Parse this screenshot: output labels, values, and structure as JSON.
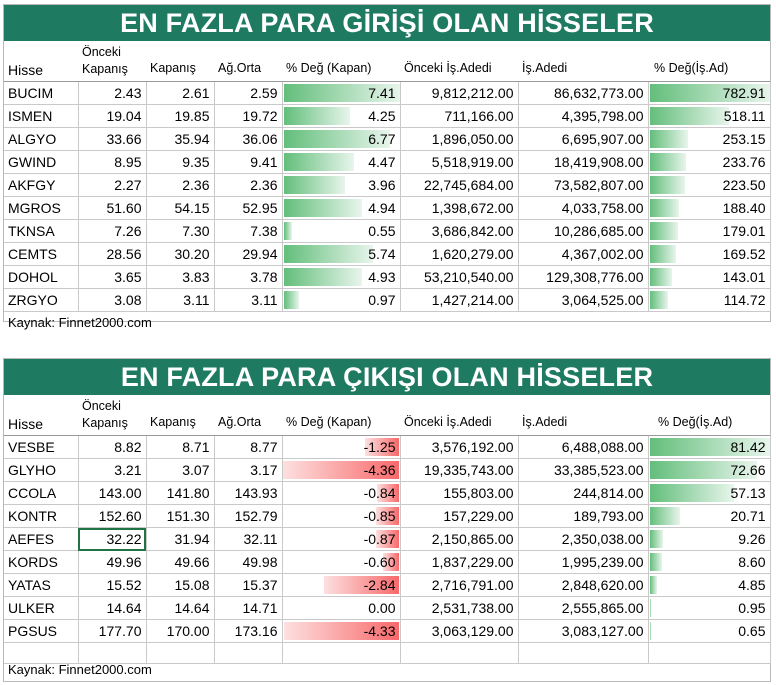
{
  "top": {
    "title": "EN FAZLA PARA GİRİŞİ OLAN HİSSELER",
    "headers": {
      "hisse": "Hisse",
      "onceki_line1": "Önceki",
      "onceki_line2": "Kapanış",
      "kapanis": "Kapanış",
      "agorta": "Ağ.Orta",
      "degkapan": "% Değ (Kapan)",
      "oncekiadet": "Önceki İş.Adedi",
      "adet": "İş.Adedi",
      "degadet": "% Değ(İş.Ad)"
    },
    "rows": [
      {
        "hisse": "BUCIM",
        "onceki": "2.43",
        "kapanis": "2.61",
        "agorta": "2.59",
        "degkapan": "7.41",
        "oncekiadet": "9,812,212.00",
        "adet": "86,632,773.00",
        "degadet": "782.91",
        "bar_kapan": 1.0,
        "bar_adet": 1.0
      },
      {
        "hisse": "ISMEN",
        "onceki": "19.04",
        "kapanis": "19.85",
        "agorta": "19.72",
        "degkapan": "4.25",
        "oncekiadet": "711,166.00",
        "adet": "4,395,798.00",
        "degadet": "518.11",
        "bar_kapan": 0.57,
        "bar_adet": 0.66
      },
      {
        "hisse": "ALGYO",
        "onceki": "33.66",
        "kapanis": "35.94",
        "agorta": "36.06",
        "degkapan": "6.77",
        "oncekiadet": "1,896,050.00",
        "adet": "6,695,907.00",
        "degadet": "253.15",
        "bar_kapan": 0.91,
        "bar_adet": 0.32
      },
      {
        "hisse": "GWIND",
        "onceki": "8.95",
        "kapanis": "9.35",
        "agorta": "9.41",
        "degkapan": "4.47",
        "oncekiadet": "5,518,919.00",
        "adet": "18,419,908.00",
        "degadet": "233.76",
        "bar_kapan": 0.6,
        "bar_adet": 0.3
      },
      {
        "hisse": "AKFGY",
        "onceki": "2.27",
        "kapanis": "2.36",
        "agorta": "2.36",
        "degkapan": "3.96",
        "oncekiadet": "22,745,684.00",
        "adet": "73,582,807.00",
        "degadet": "223.50",
        "bar_kapan": 0.53,
        "bar_adet": 0.29
      },
      {
        "hisse": "MGROS",
        "onceki": "51.60",
        "kapanis": "54.15",
        "agorta": "52.95",
        "degkapan": "4.94",
        "oncekiadet": "1,398,672.00",
        "adet": "4,033,758.00",
        "degadet": "188.40",
        "bar_kapan": 0.67,
        "bar_adet": 0.24
      },
      {
        "hisse": "TKNSA",
        "onceki": "7.26",
        "kapanis": "7.30",
        "agorta": "7.38",
        "degkapan": "0.55",
        "oncekiadet": "3,686,842.00",
        "adet": "10,286,685.00",
        "degadet": "179.01",
        "bar_kapan": 0.07,
        "bar_adet": 0.23
      },
      {
        "hisse": "CEMTS",
        "onceki": "28.56",
        "kapanis": "30.20",
        "agorta": "29.94",
        "degkapan": "5.74",
        "oncekiadet": "1,620,279.00",
        "adet": "4,367,002.00",
        "degadet": "169.52",
        "bar_kapan": 0.77,
        "bar_adet": 0.22
      },
      {
        "hisse": "DOHOL",
        "onceki": "3.65",
        "kapanis": "3.83",
        "agorta": "3.78",
        "degkapan": "4.93",
        "oncekiadet": "53,210,540.00",
        "adet": "129,308,776.00",
        "degadet": "143.01",
        "bar_kapan": 0.67,
        "bar_adet": 0.18
      },
      {
        "hisse": "ZRGYO",
        "onceki": "3.08",
        "kapanis": "3.11",
        "agorta": "3.11",
        "degkapan": "0.97",
        "oncekiadet": "1,427,214.00",
        "adet": "3,064,525.00",
        "degadet": "114.72",
        "bar_kapan": 0.13,
        "bar_adet": 0.15
      }
    ],
    "source": "Kaynak: Finnet2000.com"
  },
  "bottom": {
    "title": "EN FAZLA PARA ÇIKIŞI OLAN HİSSELER",
    "headers": {
      "hisse": "Hisse",
      "onceki_line1": "Önceki",
      "onceki_line2": "Kapanış",
      "kapanis": "Kapanış",
      "agorta": "Ağ.Orta",
      "degkapan": "% Değ (Kapan)",
      "oncekiadet": "Önceki İş.Adedi",
      "adet": "İş.Adedi",
      "degadet": "% Değ(İş.Ad)"
    },
    "rows": [
      {
        "hisse": "VESBE",
        "onceki": "8.82",
        "kapanis": "8.71",
        "agorta": "8.77",
        "degkapan": "-1.25",
        "oncekiadet": "3,576,192.00",
        "adet": "6,488,088.00",
        "degadet": "81.42",
        "bar_kapan": 0.29,
        "bar_adet": 1.0
      },
      {
        "hisse": "GLYHO",
        "onceki": "3.21",
        "kapanis": "3.07",
        "agorta": "3.17",
        "degkapan": "-4.36",
        "oncekiadet": "19,335,743.00",
        "adet": "33,385,523.00",
        "degadet": "72.66",
        "bar_kapan": 1.0,
        "bar_adet": 0.89
      },
      {
        "hisse": "CCOLA",
        "onceki": "143.00",
        "kapanis": "141.80",
        "agorta": "143.93",
        "degkapan": "-0.84",
        "oncekiadet": "155,803.00",
        "adet": "244,814.00",
        "degadet": "57.13",
        "bar_kapan": 0.19,
        "bar_adet": 0.7
      },
      {
        "hisse": "KONTR",
        "onceki": "152.60",
        "kapanis": "151.30",
        "agorta": "152.79",
        "degkapan": "-0.85",
        "oncekiadet": "157,229.00",
        "adet": "189,793.00",
        "degadet": "20.71",
        "bar_kapan": 0.2,
        "bar_adet": 0.25
      },
      {
        "hisse": "AEFES",
        "onceki": "32.22",
        "kapanis": "31.94",
        "agorta": "32.11",
        "degkapan": "-0.87",
        "oncekiadet": "2,150,865.00",
        "adet": "2,350,038.00",
        "degadet": "9.26",
        "bar_kapan": 0.2,
        "bar_adet": 0.11
      },
      {
        "hisse": "KORDS",
        "onceki": "49.96",
        "kapanis": "49.66",
        "agorta": "49.98",
        "degkapan": "-0.60",
        "oncekiadet": "1,837,229.00",
        "adet": "1,995,239.00",
        "degadet": "8.60",
        "bar_kapan": 0.14,
        "bar_adet": 0.1
      },
      {
        "hisse": "YATAS",
        "onceki": "15.52",
        "kapanis": "15.08",
        "agorta": "15.37",
        "degkapan": "-2.84",
        "oncekiadet": "2,716,791.00",
        "adet": "2,848,620.00",
        "degadet": "4.85",
        "bar_kapan": 0.65,
        "bar_adet": 0.06
      },
      {
        "hisse": "ULKER",
        "onceki": "14.64",
        "kapanis": "14.64",
        "agorta": "14.71",
        "degkapan": "0.00",
        "oncekiadet": "2,531,738.00",
        "adet": "2,555,865.00",
        "degadet": "0.95",
        "bar_kapan": 0.0,
        "bar_adet": 0.01
      },
      {
        "hisse": "PGSUS",
        "onceki": "177.70",
        "kapanis": "170.00",
        "agorta": "173.16",
        "degkapan": "-4.33",
        "oncekiadet": "3,063,129.00",
        "adet": "3,083,127.00",
        "degadet": "0.65",
        "bar_kapan": 0.99,
        "bar_adet": 0.01
      }
    ],
    "source": "Kaynak: Finnet2000.com"
  },
  "colors": {
    "title_bg": "#1e7a60",
    "bar_green": "#63be7b",
    "bar_red": "#f8696b",
    "grid": "#c9c9c9"
  }
}
